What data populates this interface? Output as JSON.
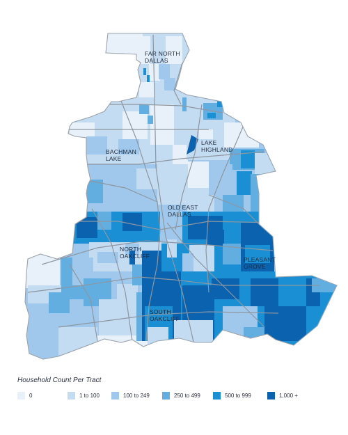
{
  "map": {
    "title": "",
    "regions": [
      {
        "id": "far-north-dallas",
        "label_lines": [
          "FAR NORTH",
          "DALLAS"
        ]
      },
      {
        "id": "lake-highland",
        "label_lines": [
          "LAKE",
          "HIGHLAND"
        ]
      },
      {
        "id": "bachman-lake",
        "label_lines": [
          "BACHMAN",
          "LAKE"
        ]
      },
      {
        "id": "old-east-dallas",
        "label_lines": [
          "OLD EAST",
          "DALLAS"
        ]
      },
      {
        "id": "north-oakcliff",
        "label_lines": [
          "NORTH",
          "OAKCLIFF"
        ]
      },
      {
        "id": "pleasant-grove",
        "label_lines": [
          "PLEASANT",
          "GROVE"
        ]
      },
      {
        "id": "south-oakcliff",
        "label_lines": [
          "SOUTH",
          "OAKCLIFF"
        ]
      }
    ],
    "colors": {
      "c0": "#e8f0fa",
      "c1": "#c4dcf2",
      "c2": "#9fc8ec",
      "c3": "#63aee0",
      "c4": "#1a8fd3",
      "c5": "#0b63b0",
      "road": "#8e96a0",
      "boundary": "#9aa3ad"
    }
  },
  "legend": {
    "title": "Household Count Per Tract",
    "items": [
      {
        "label": "0",
        "color_key": "c0"
      },
      {
        "label": "1 to 100",
        "color_key": "c1"
      },
      {
        "label": "100 to 249",
        "color_key": "c2"
      },
      {
        "label": "250 to 499",
        "color_key": "c3"
      },
      {
        "label": "500 to 999",
        "color_key": "c4"
      },
      {
        "label": "1,000 +",
        "color_key": "c5"
      }
    ]
  }
}
